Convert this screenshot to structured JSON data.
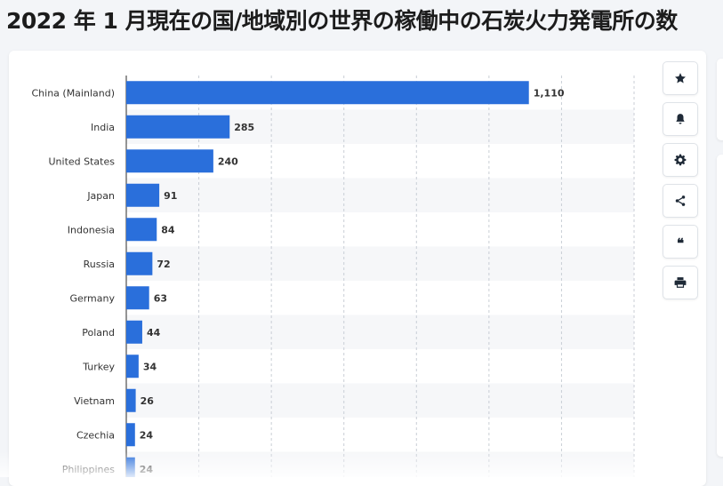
{
  "page": {
    "title": "2022 年 1 月現在の国/地域別の世界の稼働中の石炭火力発電所の数"
  },
  "toolbar": [
    {
      "name": "star-button",
      "icon": "star-icon"
    },
    {
      "name": "bell-button",
      "icon": "bell-icon"
    },
    {
      "name": "settings-button",
      "icon": "gear-icon"
    },
    {
      "name": "share-button",
      "icon": "share-icon"
    },
    {
      "name": "quote-button",
      "icon": "quote-icon"
    },
    {
      "name": "print-button",
      "icon": "print-icon"
    }
  ],
  "colors": {
    "bar": "#2a6fdb",
    "grid": "#c9ced6",
    "band": "#f6f7f9"
  },
  "chart_data": {
    "type": "bar",
    "orientation": "horizontal",
    "categories": [
      "China (Mainland)",
      "India",
      "United States",
      "Japan",
      "Indonesia",
      "Russia",
      "Germany",
      "Poland",
      "Turkey",
      "Vietnam",
      "Czechia",
      "Philippines"
    ],
    "values": [
      1110,
      285,
      240,
      91,
      84,
      72,
      63,
      44,
      34,
      26,
      24,
      24
    ],
    "value_labels": [
      "1,110",
      "285",
      "240",
      "91",
      "84",
      "72",
      "63",
      "44",
      "34",
      "26",
      "24",
      "24"
    ],
    "xlim": [
      0,
      1400
    ],
    "x_grid_step": 200,
    "grid": true,
    "alternating_row_bands": true
  }
}
